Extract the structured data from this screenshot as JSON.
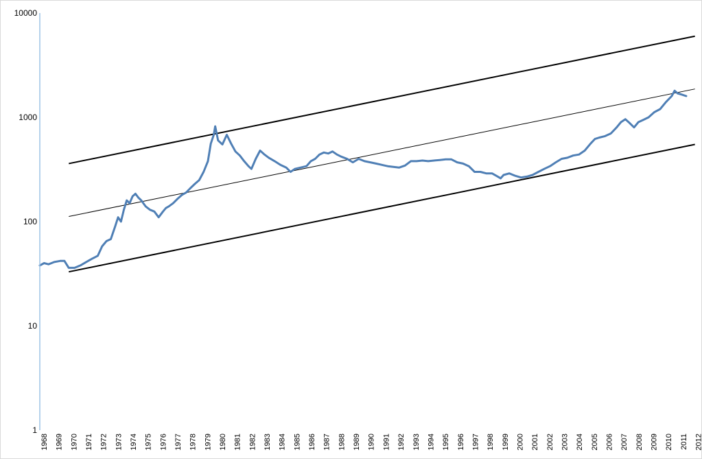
{
  "chart_data": {
    "type": "line",
    "title": "",
    "xlabel": "",
    "ylabel": "",
    "y_scale": "log",
    "ylim": [
      1,
      10000
    ],
    "y_ticks": [
      "1",
      "10",
      "100",
      "1000",
      "10000"
    ],
    "x_ticks": [
      "1968",
      "1969",
      "1970",
      "1971",
      "1972",
      "1973",
      "1974",
      "1975",
      "1976",
      "1977",
      "1978",
      "1979",
      "1980",
      "1981",
      "1982",
      "1983",
      "1984",
      "1985",
      "1986",
      "1987",
      "1988",
      "1989",
      "1990",
      "1991",
      "1992",
      "1993",
      "1994",
      "1995",
      "1996",
      "1997",
      "1998",
      "1999",
      "2000",
      "2001",
      "2002",
      "2003",
      "2004",
      "2005",
      "2006",
      "2007",
      "2008",
      "2009",
      "2010",
      "2011",
      "2012"
    ],
    "grid": false,
    "legend": "none",
    "colors": {
      "series": "#4f7fb5",
      "trend": "#000000",
      "axis": "#9dc3e6"
    },
    "series": [
      {
        "x": [
          1968.0,
          1968.3,
          1968.6,
          1969.0,
          1969.4,
          1969.7,
          1970.0,
          1970.4,
          1970.8,
          1971.2,
          1971.6,
          1972.0,
          1972.3,
          1972.6,
          1972.9,
          1973.2,
          1973.4,
          1973.6,
          1973.8,
          1974.0,
          1974.2,
          1974.4,
          1974.6,
          1974.8,
          1975.0,
          1975.3,
          1975.6,
          1975.9,
          1976.2,
          1976.5,
          1976.7,
          1976.9,
          1977.2,
          1977.5,
          1977.8,
          1978.1,
          1978.4,
          1978.7,
          1979.0,
          1979.3,
          1979.6,
          1979.8,
          1980.0,
          1980.1,
          1980.3,
          1980.6,
          1980.9,
          1981.2,
          1981.5,
          1981.8,
          1982.1,
          1982.4,
          1982.6,
          1982.9,
          1983.2,
          1983.5,
          1983.8,
          1984.2,
          1984.6,
          1985.0,
          1985.3,
          1985.6,
          1986.0,
          1986.4,
          1986.7,
          1987.0,
          1987.3,
          1987.6,
          1987.9,
          1988.2,
          1988.5,
          1988.8,
          1989.2,
          1989.6,
          1990.0,
          1990.4,
          1990.8,
          1991.2,
          1991.6,
          1992.0,
          1992.4,
          1992.8,
          1993.2,
          1993.6,
          1994.0,
          1994.4,
          1994.8,
          1995.2,
          1995.6,
          1996.0,
          1996.4,
          1996.8,
          1997.2,
          1997.6,
          1998.0,
          1998.4,
          1998.8,
          1999.2,
          1999.6,
          1999.8,
          2000.0,
          2000.4,
          2000.8,
          2001.2,
          2001.6,
          2002.0,
          2002.4,
          2002.8,
          2003.2,
          2003.6,
          2004.0,
          2004.4,
          2004.8,
          2005.2,
          2005.6,
          2006.0,
          2006.3,
          2006.6,
          2007.0,
          2007.4,
          2007.8,
          2008.1,
          2008.4,
          2008.7,
          2009.0,
          2009.3,
          2009.6,
          2010.0,
          2010.4,
          2010.8,
          2011.2,
          2011.6,
          2011.8,
          2012.0,
          2012.3,
          2012.6
        ],
        "values": [
          38,
          40,
          39,
          41,
          42,
          42,
          36,
          36,
          38,
          41,
          44,
          47,
          58,
          65,
          68,
          90,
          110,
          100,
          130,
          160,
          150,
          175,
          185,
          170,
          160,
          140,
          130,
          125,
          110,
          125,
          135,
          140,
          150,
          165,
          180,
          190,
          210,
          230,
          250,
          300,
          380,
          560,
          680,
          820,
          600,
          550,
          680,
          560,
          470,
          430,
          380,
          340,
          320,
          400,
          480,
          440,
          410,
          380,
          350,
          330,
          300,
          320,
          330,
          340,
          380,
          400,
          440,
          460,
          450,
          470,
          440,
          420,
          400,
          370,
          400,
          380,
          370,
          360,
          350,
          340,
          335,
          330,
          345,
          380,
          380,
          385,
          380,
          385,
          390,
          395,
          395,
          370,
          360,
          340,
          300,
          300,
          290,
          290,
          270,
          260,
          280,
          290,
          275,
          265,
          270,
          280,
          300,
          320,
          340,
          370,
          400,
          410,
          430,
          440,
          480,
          560,
          620,
          640,
          660,
          700,
          800,
          900,
          960,
          880,
          800,
          900,
          940,
          1000,
          1120,
          1200,
          1400,
          1600,
          1800,
          1700,
          1650,
          1600
        ]
      }
    ],
    "trend_lines": [
      {
        "x": [
          1970.0,
          2013.2
        ],
        "values": [
          360,
          6000
        ]
      },
      {
        "x": [
          1970.0,
          2013.2
        ],
        "values": [
          112,
          1870
        ]
      },
      {
        "x": [
          1970.0,
          2013.2
        ],
        "values": [
          33,
          550
        ]
      }
    ]
  }
}
